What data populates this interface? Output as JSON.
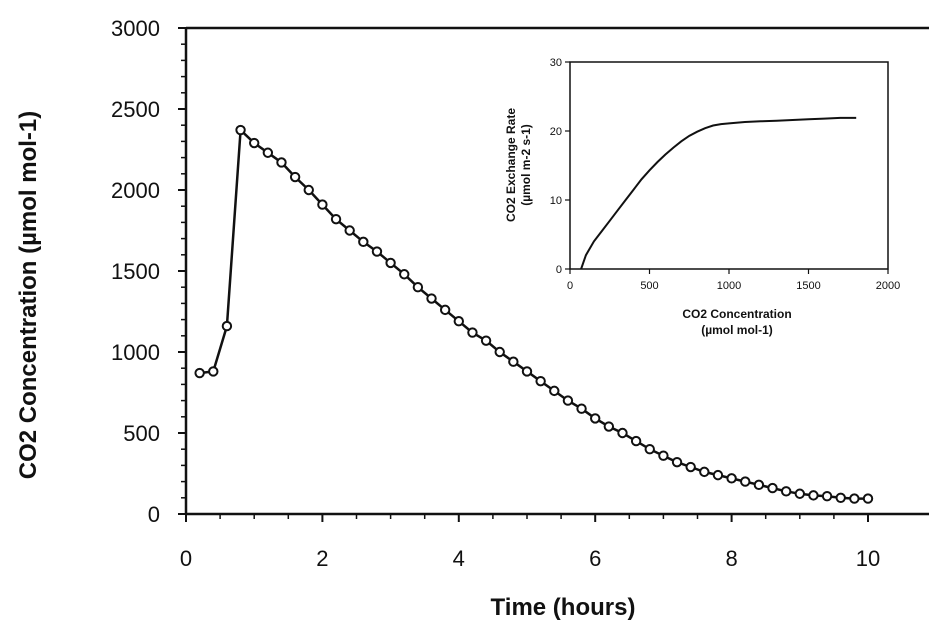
{
  "chart_data": [
    {
      "type": "line",
      "markers": "open-circle",
      "xlabel": "Time (hours)",
      "ylabel": "CO2 Concentration (µmol mol-1)",
      "xlim": [
        0,
        10
      ],
      "ylim": [
        0,
        3000
      ],
      "x_ticks": [
        "0",
        "2",
        "4",
        "6",
        "8",
        "10"
      ],
      "y_ticks": [
        "0",
        "500",
        "1000",
        "1500",
        "2000",
        "2500",
        "3000"
      ],
      "grid": false,
      "series": [
        {
          "x": [
            0.2,
            0.4,
            0.6,
            0.8,
            1.0,
            1.2,
            1.4,
            1.6,
            1.8,
            2.0,
            2.2,
            2.4,
            2.6,
            2.8,
            3.0,
            3.2,
            3.4,
            3.6,
            3.8,
            4.0,
            4.2,
            4.4,
            4.6,
            4.8,
            5.0,
            5.2,
            5.4,
            5.6,
            5.8,
            6.0,
            6.2,
            6.4,
            6.6,
            6.8,
            7.0,
            7.2,
            7.4,
            7.6,
            7.8,
            8.0,
            8.2,
            8.4,
            8.6,
            8.8,
            9.0,
            9.2,
            9.4,
            9.6,
            9.8,
            10.0
          ],
          "y": [
            870,
            880,
            1160,
            2370,
            2290,
            2230,
            2170,
            2080,
            2000,
            1910,
            1820,
            1750,
            1680,
            1620,
            1550,
            1480,
            1400,
            1330,
            1260,
            1190,
            1120,
            1070,
            1000,
            940,
            880,
            820,
            760,
            700,
            650,
            590,
            540,
            500,
            450,
            400,
            360,
            320,
            290,
            260,
            240,
            220,
            200,
            180,
            160,
            140,
            125,
            115,
            110,
            100,
            95,
            95
          ]
        }
      ]
    },
    {
      "type": "line",
      "xlabel": "CO2  Concentration\n(µmol mol-1)",
      "ylabel": "CO2 Exchange Rate\n(µmol m-2 s-1)",
      "xlim": [
        0,
        2000
      ],
      "ylim": [
        0,
        30
      ],
      "x_ticks": [
        "0",
        "500",
        "1000",
        "1500",
        "2000"
      ],
      "y_ticks": [
        "0",
        "10",
        "20",
        "30"
      ],
      "grid": false,
      "series": [
        {
          "x": [
            70,
            100,
            150,
            200,
            250,
            300,
            350,
            400,
            450,
            500,
            550,
            600,
            650,
            700,
            750,
            800,
            850,
            900,
            950,
            1000,
            1100,
            1200,
            1300,
            1400,
            1500,
            1600,
            1700,
            1800
          ],
          "y": [
            0,
            2,
            4,
            5.5,
            7,
            8.5,
            10,
            11.5,
            13,
            14.3,
            15.5,
            16.6,
            17.6,
            18.5,
            19.3,
            19.9,
            20.4,
            20.8,
            21.0,
            21.1,
            21.3,
            21.4,
            21.5,
            21.6,
            21.7,
            21.8,
            21.9,
            21.9
          ]
        }
      ]
    }
  ]
}
